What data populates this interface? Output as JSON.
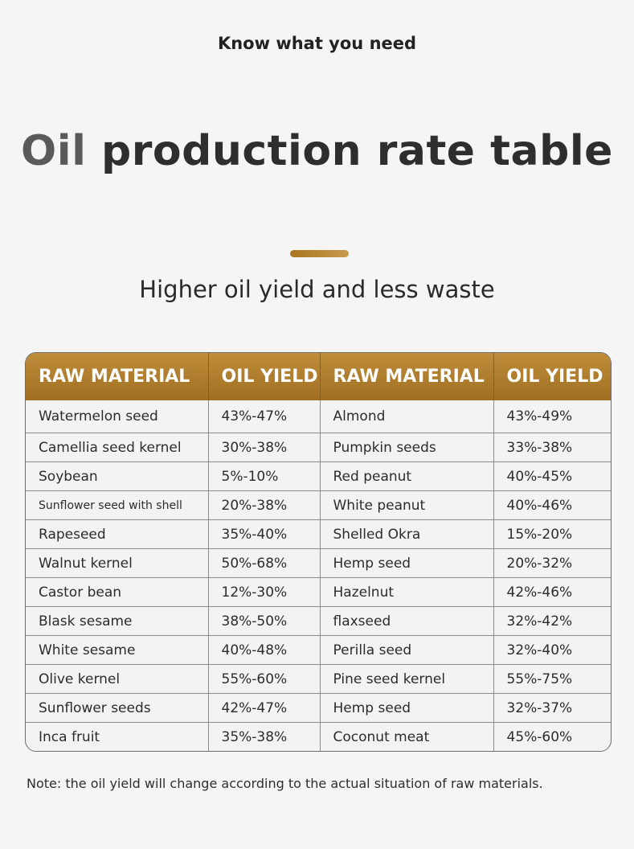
{
  "header": {
    "kicker": "Know what you need",
    "title_part1": "Oil",
    "title_part2": "production rate table",
    "subtitle": "Higher oil yield and less waste"
  },
  "colors": {
    "accent": "#b07e2c",
    "background": "#f5f5f5"
  },
  "table": {
    "headers": [
      "RAW MATERIAL",
      "OIL YIELD",
      "RAW MATERIAL",
      "OIL YIELD"
    ],
    "rows": [
      [
        "Watermelon seed",
        "43%-47%",
        "Almond",
        "43%-49%"
      ],
      [
        "Camellia seed kernel",
        "30%-38%",
        "Pumpkin seeds",
        "33%-38%"
      ],
      [
        "Soybean",
        "5%-10%",
        "Red peanut",
        "40%-45%"
      ],
      [
        "Sunflower seed with shell",
        "20%-38%",
        "White peanut",
        "40%-46%"
      ],
      [
        "Rapeseed",
        "35%-40%",
        "Shelled Okra",
        "15%-20%"
      ],
      [
        "Walnut kernel",
        "50%-68%",
        "Hemp seed",
        "20%-32%"
      ],
      [
        "Castor bean",
        "12%-30%",
        "Hazelnut",
        "42%-46%"
      ],
      [
        "Blask sesame",
        "38%-50%",
        "flaxseed",
        "32%-42%"
      ],
      [
        "White sesame",
        "40%-48%",
        "Perilla seed",
        "32%-40%"
      ],
      [
        "Olive kernel",
        "55%-60%",
        "Pine seed kernel",
        "55%-75%"
      ],
      [
        "Sunflower seeds",
        "42%-47%",
        "Hemp seed",
        "32%-37%"
      ],
      [
        "Inca fruit",
        "35%-38%",
        "Coconut meat",
        "45%-60%"
      ]
    ]
  },
  "note": "Note: the oil yield will change according to the actual situation of raw materials."
}
